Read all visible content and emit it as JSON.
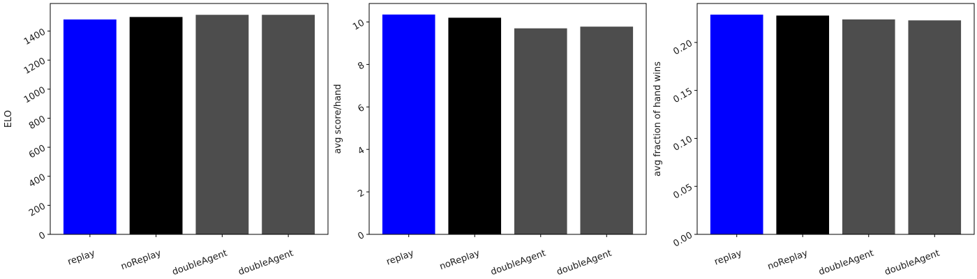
{
  "chart_data": [
    {
      "type": "bar",
      "categories": [
        "replay",
        "noReplay",
        "doubleAgent",
        "doubleAgent"
      ],
      "values": [
        1480,
        1497,
        1512,
        1512
      ],
      "colors": [
        "#0000ff",
        "#000000",
        "#4d4d4d",
        "#4d4d4d"
      ],
      "ylabel": "ELO",
      "ylim": [
        0,
        1590
      ],
      "yticks": [
        0,
        200,
        400,
        600,
        800,
        1000,
        1200,
        1400
      ],
      "ytick_labels": [
        "0",
        "200",
        "400",
        "600",
        "800",
        "1000",
        "1200",
        "1400"
      ],
      "grid": false
    },
    {
      "type": "bar",
      "categories": [
        "replay",
        "noReplay",
        "doubleAgent",
        "doubleAgent"
      ],
      "values": [
        10.35,
        10.2,
        9.7,
        9.78
      ],
      "colors": [
        "#0000ff",
        "#000000",
        "#4d4d4d",
        "#4d4d4d"
      ],
      "ylabel": "avg score/hand",
      "ylim": [
        0,
        10.87
      ],
      "yticks": [
        0,
        2,
        4,
        6,
        8,
        10
      ],
      "ytick_labels": [
        "0",
        "2",
        "4",
        "6",
        "8",
        "10"
      ],
      "grid": false
    },
    {
      "type": "bar",
      "categories": [
        "replay",
        "noReplay",
        "doubleAgent",
        "doubleAgent"
      ],
      "values": [
        0.229,
        0.228,
        0.224,
        0.223
      ],
      "colors": [
        "#0000ff",
        "#000000",
        "#4d4d4d",
        "#4d4d4d"
      ],
      "ylabel": "avg fraction of hand wins",
      "ylim": [
        0,
        0.2406
      ],
      "yticks": [
        0,
        0.05,
        0.1,
        0.15,
        0.2
      ],
      "ytick_labels": [
        "0.00",
        "0.05",
        "0.10",
        "0.15",
        "0.20"
      ],
      "grid": false
    }
  ]
}
